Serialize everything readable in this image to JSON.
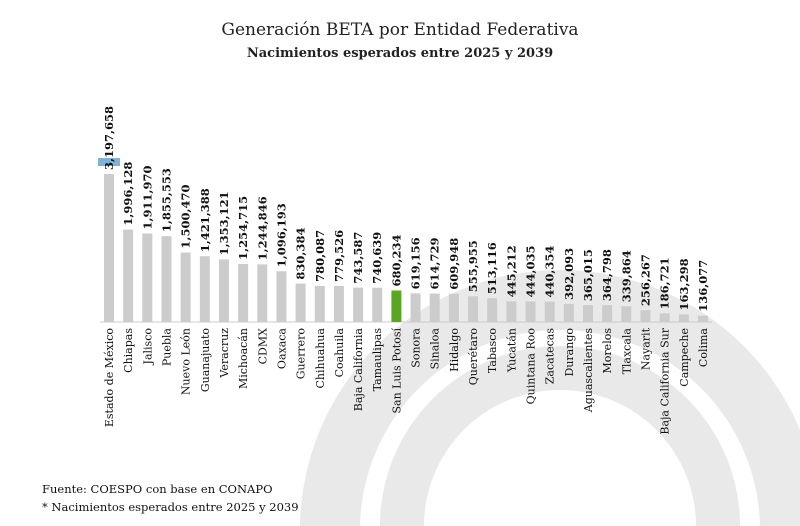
{
  "chart_data": {
    "type": "bar",
    "title": "Generación BETA por Entidad Federativa",
    "subtitle": "Nacimientos esperados entre 2025 y 2039",
    "categories": [
      "Estado de México",
      "Chiapas",
      "Jalisco",
      "Puebla",
      "Nuevo León",
      "Guanajuato",
      "Veracruz",
      "Michoacán",
      "CDMX",
      "Oaxaca",
      "Guerrero",
      "Chihuahua",
      "Coahuila",
      "Baja California",
      "Tamaulipas",
      "San Luis Potosí",
      "Sonora",
      "Sinaloa",
      "Hidalgo",
      "Querétaro",
      "Tabasco",
      "Yucatán",
      "Quintana Roo",
      "Zacatecas",
      "Durango",
      "Aguascalientes",
      "Morelos",
      "Tlaxcala",
      "Nayarit",
      "Baja California Sur",
      "Campeche",
      "Colima"
    ],
    "values": [
      3197658,
      1996128,
      1911970,
      1855553,
      1500470,
      1421388,
      1353121,
      1254715,
      1244846,
      1096193,
      830384,
      780087,
      779526,
      743587,
      740639,
      680234,
      619156,
      614729,
      609948,
      555955,
      513116,
      445212,
      444035,
      440354,
      392093,
      365015,
      364798,
      339864,
      256267,
      186721,
      163298,
      136077
    ],
    "value_labels": [
      "3,197,658",
      "1,996,128",
      "1,911,970",
      "1,855,553",
      "1,500,470",
      "1,421,388",
      "1,353,121",
      "1,254,715",
      "1,244,846",
      "1,096,193",
      "830,384",
      "780,087",
      "779,526",
      "743,587",
      "740,639",
      "680,234",
      "619,156",
      "614,729",
      "609,948",
      "555,955",
      "513,116",
      "445,212",
      "444,035",
      "440,354",
      "392,093",
      "365,015",
      "364,798",
      "339,864",
      "256,267",
      "186,721",
      "163,298",
      "136,077"
    ],
    "highlight_category": "San Luis Potosí",
    "colors": {
      "bar": "#cccccc",
      "highlight": "#5aa623",
      "top_label_bg": "#7fb2d6"
    },
    "grid": false,
    "xlabel": "",
    "ylabel": ""
  },
  "notes": {
    "source": "Fuente: COESPO con base en CONAPO",
    "footnote": "* Nacimientos esperados entre 2025 y 2039"
  }
}
